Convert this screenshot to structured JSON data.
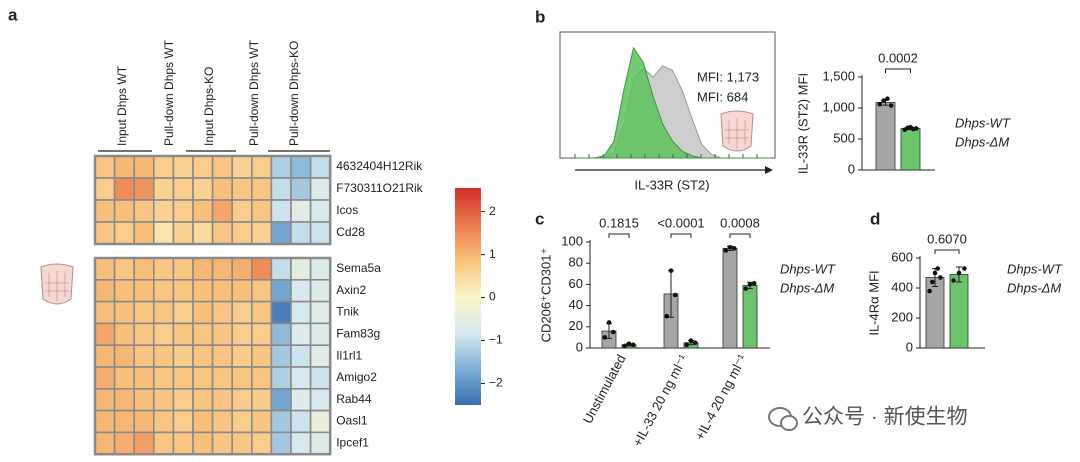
{
  "panel_labels": [
    "a",
    "b",
    "c",
    "d"
  ],
  "watermark": "公众号 · 新使生物",
  "chart_data": [
    {
      "type": "heatmap",
      "columns": [
        "Input Dhps WT",
        "Pull-down Dhps WT",
        "Input Dhps-KO",
        "Pull-down Dhps WT",
        "Pull-down Dhps-KO"
      ],
      "rows": [
        "4632404H12Rik",
        "F730311O21Rik",
        "Icos",
        "Cd28",
        "Sema5a",
        "Axin2",
        "Tnik",
        "Fam83g",
        "Il1rl1",
        "Amigo2",
        "Rab44",
        "Oasl1",
        "Ipcef1"
      ],
      "values": [
        [
          0.8,
          1.0,
          1.0,
          0.7,
          0.6,
          0.7,
          0.8,
          0.6,
          0.7,
          -1.2,
          -1.5,
          -1.0
        ],
        [
          0.7,
          1.5,
          1.4,
          0.6,
          0.7,
          0.6,
          0.9,
          0.8,
          0.8,
          -1.0,
          -1.3,
          -0.7
        ],
        [
          0.9,
          0.9,
          0.8,
          0.6,
          0.7,
          0.9,
          1.2,
          0.7,
          0.8,
          -0.9,
          -0.6,
          -0.8
        ],
        [
          0.8,
          0.7,
          0.9,
          0.3,
          0.6,
          0.5,
          0.8,
          0.7,
          0.6,
          -1.8,
          -1.0,
          -0.9
        ],
        [
          0.9,
          0.8,
          0.9,
          0.8,
          0.8,
          1.0,
          1.0,
          1.1,
          1.5,
          -1.0,
          -0.5,
          -0.7
        ],
        [
          1.0,
          0.9,
          0.9,
          0.8,
          0.8,
          0.9,
          0.9,
          0.9,
          0.8,
          -1.8,
          -0.8,
          -0.7
        ],
        [
          0.9,
          0.9,
          0.8,
          0.8,
          0.7,
          0.9,
          0.8,
          0.7,
          0.8,
          -2.3,
          -0.8,
          -0.6
        ],
        [
          1.2,
          0.9,
          0.8,
          0.7,
          0.8,
          0.8,
          0.8,
          0.7,
          0.7,
          -1.5,
          -0.7,
          -0.7
        ],
        [
          1.0,
          1.0,
          0.8,
          0.8,
          0.7,
          0.8,
          0.8,
          0.7,
          0.8,
          -1.3,
          -0.9,
          -0.6
        ],
        [
          1.1,
          0.9,
          0.9,
          0.8,
          0.8,
          0.8,
          0.8,
          0.8,
          0.8,
          -1.2,
          -0.8,
          -0.9
        ],
        [
          1.0,
          1.0,
          0.9,
          0.8,
          0.7,
          0.8,
          0.8,
          0.7,
          0.7,
          -1.8,
          -0.7,
          -0.8
        ],
        [
          1.0,
          1.0,
          1.0,
          0.8,
          0.7,
          0.9,
          0.8,
          0.7,
          0.8,
          -1.3,
          -0.9,
          -0.4
        ],
        [
          1.0,
          1.1,
          1.3,
          0.8,
          0.8,
          0.9,
          0.8,
          0.8,
          0.7,
          -1.3,
          -0.8,
          -0.7
        ]
      ],
      "clim": [
        -2.5,
        2.55
      ],
      "cticks": [
        {
          "value": 2,
          "label": "2"
        },
        {
          "value": 1,
          "label": "1"
        },
        0,
        {
          "value": -1,
          "label": "−1"
        },
        {
          "value": -2,
          "label": "−2"
        }
      ],
      "colorscale": [
        "#3a6fb0",
        "#7fb0d6",
        "#d6e9f0",
        "#fbf6c6",
        "#f8c27c",
        "#ec7a4e",
        "#d32f27"
      ]
    },
    {
      "type": "density",
      "xlabel": "IL-33R (ST2)",
      "x": [
        0,
        1,
        2,
        3,
        4,
        5,
        6,
        7,
        8,
        9,
        10,
        11,
        12,
        13,
        14,
        15,
        16,
        17,
        18,
        19,
        20
      ],
      "xlim": [
        0,
        20
      ],
      "ylim": [
        0,
        1.05
      ],
      "series": [
        {
          "color": "#c9c9c9",
          "values": [
            0,
            0,
            0,
            0,
            0.05,
            0.3,
            0.7,
            0.8,
            0.72,
            0.82,
            0.78,
            0.6,
            0.35,
            0.12,
            0.03,
            0,
            0,
            0,
            0,
            0,
            0
          ]
        },
        {
          "color": "#5cc25a",
          "values": [
            0,
            0,
            0,
            0.02,
            0.15,
            0.6,
            0.98,
            0.85,
            0.55,
            0.3,
            0.15,
            0.06,
            0.02,
            0,
            0,
            0,
            0,
            0,
            0,
            0,
            0
          ]
        }
      ],
      "annotations": [
        {
          "text": "MFI: 1,173",
          "color": "#3a3a3a"
        },
        {
          "text": "MFI: 684",
          "color": "#3fae49"
        }
      ]
    },
    {
      "type": "bar",
      "ylabel": "IL-33R (ST2) MFI",
      "ylim": [
        0,
        1500
      ],
      "yticks": [
        0,
        500,
        {
          "value": 1000,
          "label": "1,000"
        },
        {
          "value": 1500,
          "label": "1,500"
        }
      ],
      "series": [
        {
          "name": "Dhps-WT",
          "color": "#a6a6a6",
          "values": [
            1090
          ],
          "errors": [
            45
          ],
          "points": [
            [
              1060,
              1120,
              1150,
              1040
            ]
          ]
        },
        {
          "name": "Dhps-ΔM",
          "color": "#6cc46a",
          "values": [
            670
          ],
          "errors": [
            20
          ],
          "points": [
            [
              650,
              680,
              690,
              660,
              670
            ]
          ]
        }
      ],
      "pvalues": [
        "0.0002"
      ]
    },
    {
      "type": "bar",
      "ylabel": "CD206⁺CD301⁺",
      "categories": [
        "Unstimulated",
        "+IL-33 20 ng ml⁻¹",
        "+IL-4 20 ng ml⁻¹"
      ],
      "ylim": [
        0,
        100
      ],
      "yticks": [
        0,
        20,
        40,
        60,
        80,
        100
      ],
      "series": [
        {
          "name": "Dhps-WT",
          "color": "#a6a6a6",
          "values": [
            16,
            51,
            94
          ],
          "errors": [
            7,
            22,
            2
          ],
          "points": [
            [
              10,
              24,
              15
            ],
            [
              30,
              73,
              50
            ],
            [
              92,
              95,
              94
            ]
          ]
        },
        {
          "name": "Dhps-ΔM",
          "color": "#6cc46a",
          "values": [
            3,
            5,
            59
          ],
          "errors": [
            1,
            2,
            3
          ],
          "points": [
            [
              2,
              4,
              3
            ],
            [
              3,
              7,
              5
            ],
            [
              56,
              60,
              61
            ]
          ]
        }
      ],
      "pvalues": [
        "0.1815",
        "<0.0001",
        "0.0008"
      ]
    },
    {
      "type": "bar",
      "ylabel": "IL-4Rα MFI",
      "ylim": [
        0,
        600
      ],
      "yticks": [
        0,
        200,
        400,
        600
      ],
      "series": [
        {
          "name": "Dhps-WT",
          "color": "#a6a6a6",
          "values": [
            470
          ],
          "errors": [
            60
          ],
          "points": [
            [
              380,
              440,
              500,
              530,
              470
            ]
          ]
        },
        {
          "name": "Dhps-ΔM",
          "color": "#6cc46a",
          "values": [
            490
          ],
          "errors": [
            50
          ],
          "points": [
            [
              450,
              500,
              530
            ]
          ]
        }
      ],
      "pvalues": [
        "0.6070"
      ]
    }
  ]
}
